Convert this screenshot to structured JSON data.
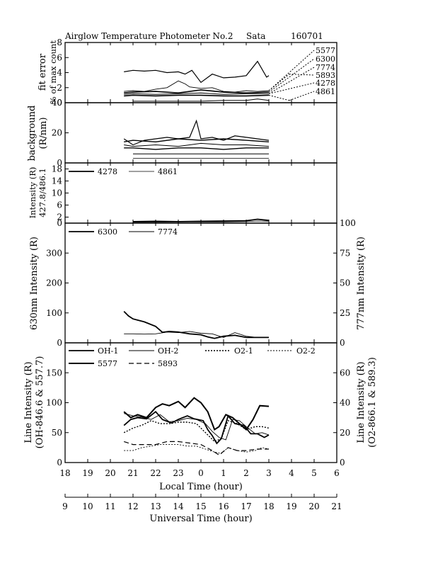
{
  "chart_data": {
    "type": "line",
    "title": {
      "name": "Airglow Temperature Photometer No.2",
      "site": "Sata",
      "date": "160701"
    },
    "local_time_axis": {
      "label": "Local Time (hour)",
      "ticks": [
        "18",
        "19",
        "20",
        "21",
        "22",
        "23",
        "0",
        "1",
        "2",
        "3",
        "4",
        "5",
        "6"
      ],
      "range": [
        18,
        30
      ]
    },
    "universal_time_axis": {
      "label": "Universal Time (hour)",
      "ticks": [
        "9",
        "10",
        "11",
        "12",
        "13",
        "14",
        "15",
        "16",
        "17",
        "18",
        "19",
        "20",
        "21"
      ],
      "range": [
        9,
        21
      ]
    },
    "panels": [
      {
        "id": "fit-error",
        "ylabel_lines": [
          "fit error",
          "% of max count"
        ],
        "ylim": [
          0,
          8
        ],
        "yticks": [
          "0",
          "2",
          "4",
          "6",
          "8"
        ],
        "legend": [
          "5577",
          "6300",
          "7774",
          "5893",
          "4278",
          "4861"
        ],
        "series": [
          {
            "x": [
              20.6,
              21.0,
              21.5,
              22.0,
              22.5,
              23.0,
              23.3,
              23.6,
              24.0,
              24.5,
              25.0,
              25.5,
              26.0,
              26.5,
              26.9,
              27.0
            ],
            "y": [
              4.1,
              4.3,
              4.2,
              4.3,
              4.0,
              4.1,
              3.8,
              4.3,
              2.7,
              3.8,
              3.3,
              3.4,
              3.6,
              5.5,
              3.4,
              3.6
            ]
          },
          {
            "x": [
              20.6,
              21.0,
              21.5,
              22.0,
              22.5,
              23.0,
              23.3,
              23.5,
              24.0,
              24.5,
              25.0,
              25.5,
              26.0,
              26.5,
              27.0
            ],
            "y": [
              1.5,
              1.6,
              1.5,
              1.8,
              2.0,
              2.9,
              2.5,
              2.1,
              1.9,
              2.0,
              1.5,
              1.4,
              1.6,
              1.5,
              1.6
            ]
          },
          {
            "x": [
              20.6,
              21.0,
              22.0,
              23.0,
              24.0,
              25.0,
              26.0,
              27.0
            ],
            "y": [
              1.3,
              1.4,
              1.5,
              1.3,
              1.7,
              1.4,
              1.3,
              1.4
            ]
          },
          {
            "x": [
              20.6,
              21.0,
              22.0,
              23.0,
              24.0,
              25.0,
              26.0,
              27.0
            ],
            "y": [
              1.1,
              1.2,
              1.1,
              1.2,
              1.3,
              1.1,
              1.2,
              1.2
            ]
          },
          {
            "x": [
              20.6,
              21.0,
              22.0,
              23.0,
              24.0,
              25.0,
              26.0,
              27.0
            ],
            "y": [
              0.9,
              1.0,
              0.9,
              1.0,
              1.0,
              0.9,
              0.9,
              1.0
            ]
          },
          {
            "x": [
              21.0,
              22.0,
              23.0,
              24.0,
              25.0,
              26.0,
              26.5,
              27.0
            ],
            "y": [
              0.2,
              0.2,
              0.2,
              0.2,
              0.3,
              0.3,
              0.5,
              0.3
            ]
          }
        ]
      },
      {
        "id": "background",
        "ylabel_lines": [
          "background",
          "(R/nm)"
        ],
        "ylim": [
          0,
          40
        ],
        "yticks": [
          "0",
          "20",
          "40"
        ],
        "series": [
          {
            "x": [
              20.6,
              21.0,
              21.5,
              22.0,
              22.5,
              23.0,
              23.5,
              23.8,
              24.0,
              24.5,
              25.0,
              25.5,
              26.0,
              26.5,
              27.0
            ],
            "y": [
              16,
              12,
              15,
              16,
              17,
              16,
              17,
              28,
              16,
              17,
              15,
              18,
              17,
              16,
              15
            ]
          },
          {
            "x": [
              20.6,
              21.0,
              22.0,
              23.0,
              24.0,
              25.0,
              26.0,
              27.0
            ],
            "y": [
              14,
              15,
              14,
              16,
              15,
              16,
              15,
              14
            ]
          },
          {
            "x": [
              20.6,
              21.0,
              22.0,
              23.0,
              24.0,
              25.0,
              26.0,
              27.0
            ],
            "y": [
              12,
              11,
              12,
              11,
              13,
              12,
              12,
              11
            ]
          },
          {
            "x": [
              20.6,
              21.0,
              22.0,
              23.0,
              24.0,
              25.0,
              26.0,
              27.0
            ],
            "y": [
              10,
              10,
              9,
              10,
              10,
              9,
              10,
              10
            ]
          },
          {
            "x": [
              21.0,
              22.0,
              23.0,
              24.0,
              25.0,
              26.0,
              27.0
            ],
            "y": [
              6,
              6,
              6,
              6,
              6,
              6,
              6
            ]
          },
          {
            "x": [
              21.0,
              22.0,
              23.0,
              24.0,
              25.0,
              26.0,
              27.0
            ],
            "y": [
              3,
              3,
              3,
              3,
              3,
              3,
              3
            ]
          }
        ]
      },
      {
        "id": "intensity-427-486",
        "ylabel_lines": [
          "Intensity (R)",
          "427.8/486.1"
        ],
        "ylim": [
          0,
          20
        ],
        "yticks": [
          "0",
          "2",
          "6",
          "10",
          "14",
          "18"
        ],
        "legend": [
          "4278",
          "4861"
        ],
        "series": [
          {
            "name": "4278",
            "x": [
              21.0,
              22.0,
              23.0,
              24.0,
              25.0,
              26.0,
              26.5,
              27.0
            ],
            "y": [
              0.5,
              0.6,
              0.5,
              0.6,
              0.7,
              0.8,
              1.3,
              0.9
            ]
          },
          {
            "name": "4861",
            "x": [
              21.0,
              22.0,
              23.0,
              24.0,
              25.0,
              26.0,
              26.5,
              27.0
            ],
            "y": [
              0.3,
              0.3,
              0.4,
              0.4,
              0.4,
              0.5,
              0.7,
              0.6
            ]
          }
        ]
      },
      {
        "id": "630-777",
        "ylabel_left": "630nm Intensity (R)",
        "ylabel_right": "777nm Intensity (R)",
        "ylim": [
          0,
          400
        ],
        "ylim_right": [
          0,
          100
        ],
        "yticks": [
          "0",
          "100",
          "200",
          "300"
        ],
        "yticks_right": [
          "0",
          "25",
          "50",
          "75",
          "100"
        ],
        "legend": [
          "6300",
          "7774"
        ],
        "series": [
          {
            "name": "6300",
            "x": [
              20.6,
              20.8,
              21.0,
              21.5,
              22.0,
              22.3,
              22.6,
              23.0,
              23.5,
              24.0,
              24.3,
              24.6,
              25.0,
              25.5,
              26.0,
              26.5,
              27.0
            ],
            "y": [
              105,
              90,
              80,
              70,
              55,
              35,
              38,
              36,
              30,
              27,
              20,
              15,
              22,
              25,
              18,
              18,
              18
            ]
          },
          {
            "name": "7774",
            "x": [
              20.6,
              21.0,
              21.5,
              22.0,
              22.5,
              23.0,
              23.5,
              24.0,
              24.5,
              25.0,
              25.5,
              26.0,
              26.5,
              27.0
            ],
            "y": [
              7.5,
              7.5,
              7.3,
              7.5,
              9.0,
              8.5,
              9.5,
              8.0,
              7.5,
              4.5,
              8.5,
              5.5,
              4.5,
              4.5
            ]
          }
        ]
      },
      {
        "id": "line-intensity",
        "ylabel_left_lines": [
          "Line Intensity (R)",
          "(OH-846.6 & 557.7)"
        ],
        "ylabel_right_lines": [
          "Line Intensity (R)",
          "(O2-866.1 & 589.3)"
        ],
        "ylim": [
          0,
          200
        ],
        "ylim_right": [
          0,
          80
        ],
        "yticks": [
          "0",
          "50",
          "100",
          "150"
        ],
        "yticks_right": [
          "0",
          "20",
          "40",
          "60"
        ],
        "legend": [
          "OH-1",
          "OH-2",
          "O2-1",
          "O2-2",
          "5577",
          "5893"
        ],
        "series": [
          {
            "name": "OH-1",
            "x": [
              20.6,
              20.9,
              21.2,
              21.6,
              22.0,
              22.3,
              22.7,
              23.0,
              23.4,
              23.7,
              24.1,
              24.3,
              24.5,
              24.7,
              24.9,
              25.2,
              25.5,
              25.9,
              26.2,
              26.5,
              26.8,
              27.0
            ],
            "y": [
              62,
              72,
              75,
              73,
              85,
              72,
              66,
              72,
              78,
              73,
              70,
              55,
              45,
              32,
              40,
              78,
              65,
              62,
              48,
              48,
              42,
              46
            ]
          },
          {
            "name": "OH-2",
            "x": [
              20.6,
              21.0,
              21.4,
              21.8,
              22.2,
              22.6,
              23.0,
              23.4,
              23.8,
              24.2,
              24.5,
              24.8,
              25.1,
              25.4,
              25.7,
              26.0,
              26.4,
              26.7,
              27.0
            ],
            "y": [
              82,
              78,
              76,
              72,
              80,
              68,
              70,
              74,
              72,
              65,
              52,
              42,
              38,
              72,
              70,
              60,
              48,
              50,
              46
            ]
          },
          {
            "name": "O2-1",
            "x": [
              20.6,
              21.0,
              21.4,
              21.8,
              22.2,
              22.6,
              23.0,
              23.4,
              23.8,
              24.2,
              24.6,
              24.9,
              25.2,
              25.6,
              26.0,
              26.4,
              26.7,
              27.0
            ],
            "y": [
              20,
              23,
              25,
              28,
              26,
              26,
              27,
              27,
              26,
              20,
              14,
              16,
              28,
              26,
              22,
              24,
              24,
              23
            ]
          },
          {
            "name": "O2-2",
            "x": [
              20.6,
              21.0,
              21.4,
              21.8,
              22.2,
              22.6,
              23.0,
              23.4,
              23.8,
              24.2,
              24.6,
              24.9,
              25.2,
              25.6,
              26.0,
              26.4,
              26.7,
              27.0
            ],
            "y": [
              8,
              8,
              10,
              11,
              12,
              12,
              12,
              11,
              11,
              9,
              7,
              6,
              10,
              8,
              7,
              8,
              10,
              9
            ]
          },
          {
            "name": "5577",
            "x": [
              20.6,
              20.9,
              21.2,
              21.6,
              22.0,
              22.3,
              22.6,
              23.0,
              23.3,
              23.7,
              24.0,
              24.3,
              24.6,
              24.8,
              25.1,
              25.4,
              25.7,
              26.0,
              26.3,
              26.6,
              27.0
            ],
            "y": [
              85,
              75,
              80,
              75,
              92,
              98,
              95,
              102,
              92,
              108,
              100,
              85,
              55,
              60,
              80,
              75,
              65,
              55,
              72,
              95,
              94
            ]
          },
          {
            "name": "5893",
            "x": [
              20.6,
              21.0,
              21.5,
              22.0,
              22.5,
              23.0,
              23.5,
              24.0,
              24.5,
              24.8,
              25.2,
              25.6,
              26.0,
              26.5,
              27.0
            ],
            "y": [
              14,
              12,
              12,
              12,
              14,
              14,
              13,
              12,
              8,
              5,
              10,
              8,
              8,
              9,
              9
            ]
          }
        ]
      }
    ]
  }
}
